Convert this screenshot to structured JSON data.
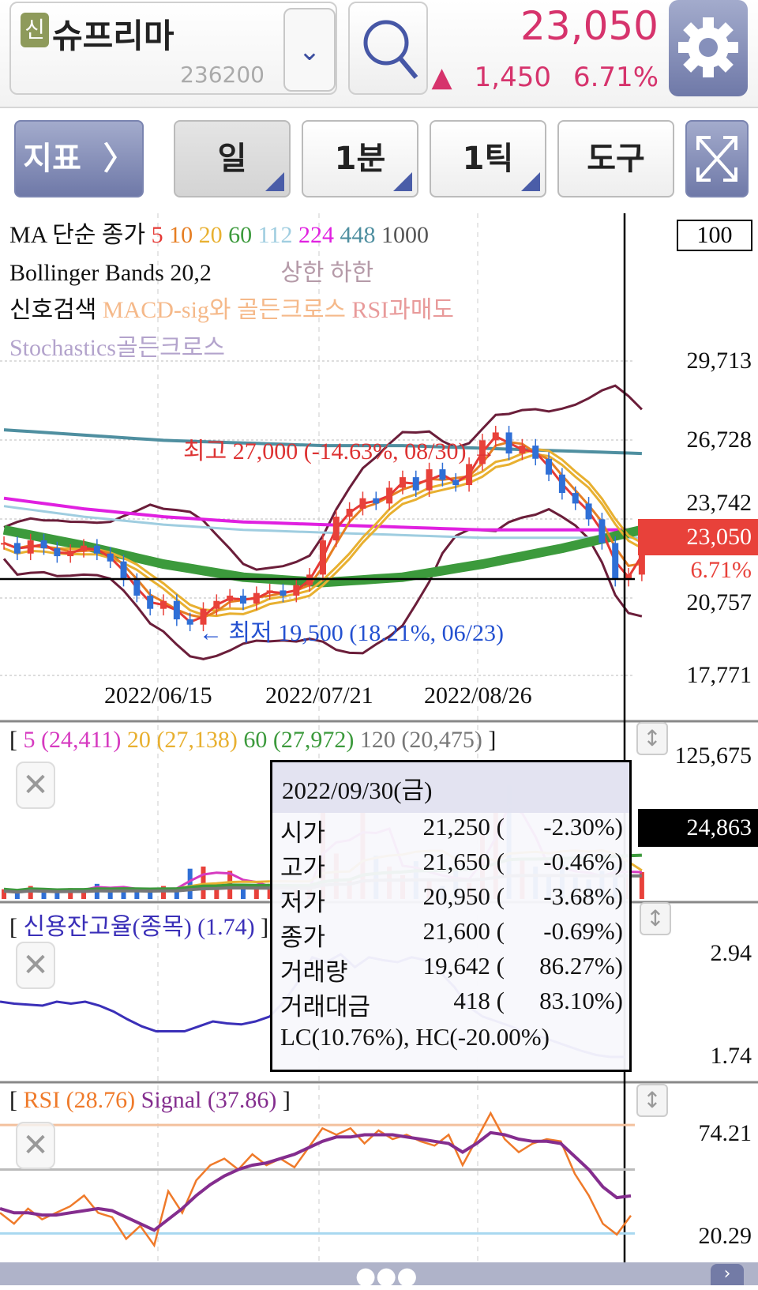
{
  "header": {
    "badge": "신",
    "stock_name": "슈프리마",
    "stock_code": "236200",
    "price": "23,050",
    "change_arrow": "▲",
    "change": "1,450",
    "change_pct": "6.71%",
    "dropdown_icon": "chevron-down-icon",
    "search_icon": "search-icon",
    "settings_icon": "gear-icon"
  },
  "toolbar": {
    "indicator": "지표",
    "indicator_arrow": "〉",
    "day": "일",
    "minute": "1분",
    "tick": "1틱",
    "tools": "도구",
    "fullscreen_icon": "expand-icon"
  },
  "legend": {
    "ma_label": "MA 단순 종가",
    "ma_periods": [
      {
        "p": "5",
        "c": "#e53935"
      },
      {
        "p": "10",
        "c": "#e67e22"
      },
      {
        "p": "20",
        "c": "#e8b030"
      },
      {
        "p": "60",
        "c": "#3c9a3c"
      },
      {
        "p": "112",
        "c": "#9fcde0"
      },
      {
        "p": "224",
        "c": "#e020e0"
      },
      {
        "p": "448",
        "c": "#4f8fa0"
      },
      {
        "p": "1000",
        "c": "#555"
      }
    ],
    "bollinger": "Bollinger Bands 20,2",
    "boll_upper": "상한",
    "boll_lower": "하한",
    "signal_label": "신호검색",
    "signal_macd": "MACD-sig와 골든크로스",
    "signal_rsi": "RSI과매도",
    "signal_stoch": "Stochastics골든크로스"
  },
  "tooltip": {
    "date": "2022/09/30(금)",
    "rows": [
      {
        "label": "시가",
        "value": "21,250 (",
        "pct": "-2.30%)"
      },
      {
        "label": "고가",
        "value": "21,650 (",
        "pct": "-0.46%)"
      },
      {
        "label": "저가",
        "value": "20,950 (",
        "pct": "-3.68%)"
      },
      {
        "label": "종가",
        "value": "21,600 (",
        "pct": "-0.69%)"
      },
      {
        "label": "거래량",
        "value": "19,642 (",
        "pct": "86.27%)"
      },
      {
        "label": "거래대금",
        "value": "418 (",
        "pct": "83.10%)"
      }
    ],
    "lc_hc": "LC(10.76%), HC(-20.00%)"
  },
  "annotations": {
    "high": "최고 27,000 (-14.63%, 08/30) →",
    "low": "← 최저 19,500 (18.21%, 06/23)"
  },
  "price_axis": {
    "top_box": "100",
    "ticks": [
      "29,713",
      "26,728",
      "23,742",
      "20,757",
      "17,771"
    ],
    "current": "23,050",
    "current_pct": "6.71%"
  },
  "date_ticks": [
    "2022/06/15",
    "2022/07/21",
    "2022/08/26"
  ],
  "volume": {
    "legend": [
      {
        "t": "5 (24,411)",
        "c": "#d63ac0"
      },
      {
        "t": "20 (27,138)",
        "c": "#e8b030"
      },
      {
        "t": "60 (27,972)",
        "c": "#3c9a3c"
      },
      {
        "t": "120 (20,475)",
        "c": "#777"
      }
    ],
    "axis_top": "125,675",
    "current": "24,863"
  },
  "credit": {
    "legend": "신용잔고율(종목) (1.74)",
    "axis_top": "2.94",
    "axis_bottom": "1.74"
  },
  "rsi": {
    "legend_rsi": "RSI (28.76)",
    "legend_signal": "Signal (37.86)",
    "axis_top": "74.21",
    "axis_bottom": "20.29"
  },
  "colors": {
    "up": "#e8413a",
    "down": "#2f6fd6",
    "accent": "#d6336c",
    "button": "#7b84b3"
  },
  "chart_data": [
    {
      "type": "candlestick",
      "name": "price",
      "ylim": [
        17771,
        29713
      ],
      "close": [
        22800,
        22400,
        22900,
        22600,
        22300,
        22500,
        22700,
        22400,
        22100,
        21400,
        20800,
        20300,
        20600,
        19900,
        19700,
        20300,
        20600,
        20800,
        20500,
        20900,
        21000,
        20800,
        21200,
        21600,
        22900,
        23800,
        24100,
        24500,
        24300,
        24900,
        25300,
        24800,
        25600,
        25200,
        25000,
        25800,
        26700,
        27000,
        26200,
        26500,
        26000,
        25400,
        24700,
        24300,
        23700,
        22800,
        21400,
        21600,
        23050
      ],
      "ma60": [
        23300,
        22700,
        22000,
        21500,
        21300,
        21500,
        22000,
        22600,
        23300
      ],
      "ma224": [
        24500,
        24100,
        23800,
        23600,
        23500,
        23400,
        23300,
        23300,
        23300
      ],
      "ma448": [
        27100,
        26900,
        26700,
        26600,
        26500,
        26500,
        26400,
        26300,
        26200
      ]
    },
    {
      "type": "bar",
      "name": "volume",
      "ylim": [
        0,
        125675
      ],
      "values": [
        9000,
        7000,
        12000,
        8000,
        6000,
        10000,
        9000,
        14000,
        8000,
        11000,
        9000,
        7000,
        12000,
        10000,
        28000,
        30000,
        15000,
        26000,
        12000,
        9000,
        14000,
        8000,
        10000,
        12000,
        103000,
        42000,
        18000,
        125000,
        40000,
        30000,
        22000,
        35000,
        18000,
        12000,
        28000,
        15000,
        60000,
        95000,
        105000,
        38000,
        30000,
        22000,
        35000,
        20000,
        18000,
        26000,
        30000,
        19642,
        24863
      ]
    },
    {
      "type": "line",
      "name": "credit",
      "ylim": [
        1.74,
        2.94
      ],
      "values": [
        2.3,
        2.28,
        2.27,
        2.26,
        2.3,
        2.28,
        2.3,
        2.26,
        2.2,
        2.12,
        2.05,
        2.0,
        2.0,
        2.0,
        2.05,
        2.1,
        2.08,
        2.07,
        2.1,
        2.15,
        2.3,
        2.5,
        2.75,
        2.7,
        2.78,
        2.65,
        2.75,
        2.72,
        2.7,
        2.75,
        2.72,
        2.6,
        2.45,
        2.25,
        2.15,
        2.1,
        2.05,
        1.98,
        1.95,
        1.9,
        1.85,
        1.8,
        1.76,
        1.74,
        1.74
      ]
    },
    {
      "type": "line",
      "name": "rsi",
      "ylim": [
        20.29,
        74.21
      ],
      "rsi": [
        30,
        25,
        32,
        27,
        30,
        33,
        38,
        30,
        28,
        18,
        24,
        15,
        40,
        30,
        45,
        52,
        55,
        50,
        57,
        52,
        55,
        51,
        60,
        69,
        66,
        69,
        62,
        68,
        64,
        66,
        63,
        61,
        66,
        52,
        64,
        76,
        64,
        58,
        62,
        64,
        63,
        48,
        38,
        25,
        20,
        28.76
      ],
      "signal": [
        32,
        30,
        30,
        29,
        29,
        30,
        31,
        32,
        31,
        28,
        25,
        22,
        27,
        32,
        38,
        43,
        47,
        50,
        52,
        53,
        55,
        57,
        60,
        63,
        65,
        65,
        66,
        66,
        66,
        65,
        64,
        63,
        62,
        58,
        62,
        67,
        66,
        64,
        63,
        63,
        62,
        56,
        50,
        42,
        37,
        37.86
      ]
    }
  ]
}
